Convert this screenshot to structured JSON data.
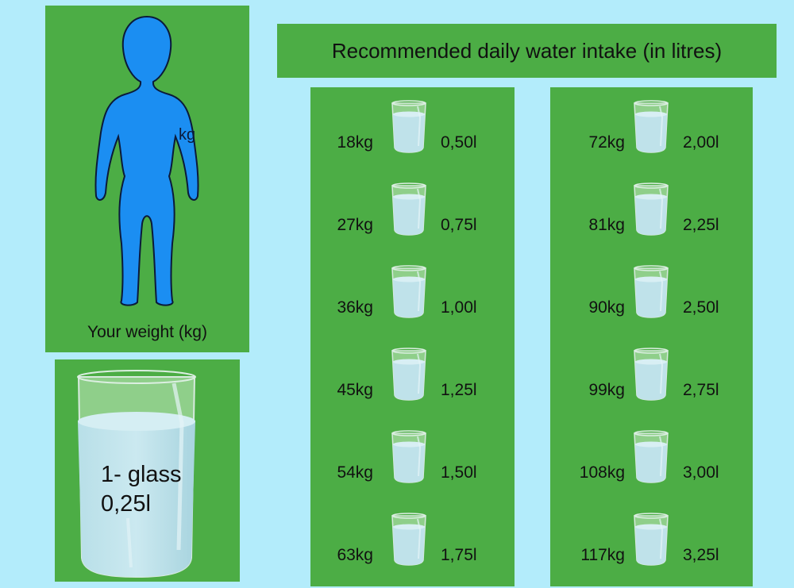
{
  "title": "Recommended daily water intake (in litres)",
  "person": {
    "body_label": "kg",
    "caption": "Your weight (kg)",
    "body_color": "#1b8ef2"
  },
  "glass": {
    "line1": "1- glass",
    "line2": "0,25l"
  },
  "colors": {
    "background": "#b3ecfb",
    "panel": "#4cad45",
    "water": "#b6dde6"
  },
  "table": {
    "left": [
      {
        "weight": "18kg",
        "intake": "0,50l"
      },
      {
        "weight": "27kg",
        "intake": "0,75l"
      },
      {
        "weight": "36kg",
        "intake": "1,00l"
      },
      {
        "weight": "45kg",
        "intake": "1,25l"
      },
      {
        "weight": "54kg",
        "intake": "1,50l"
      },
      {
        "weight": "63kg",
        "intake": "1,75l"
      }
    ],
    "right": [
      {
        "weight": "72kg",
        "intake": "2,00l"
      },
      {
        "weight": "81kg",
        "intake": "2,25l"
      },
      {
        "weight": "90kg",
        "intake": "2,50l"
      },
      {
        "weight": "99kg",
        "intake": "2,75l"
      },
      {
        "weight": "108kg",
        "intake": "3,00l"
      },
      {
        "weight": "117kg",
        "intake": "3,25l"
      }
    ]
  }
}
